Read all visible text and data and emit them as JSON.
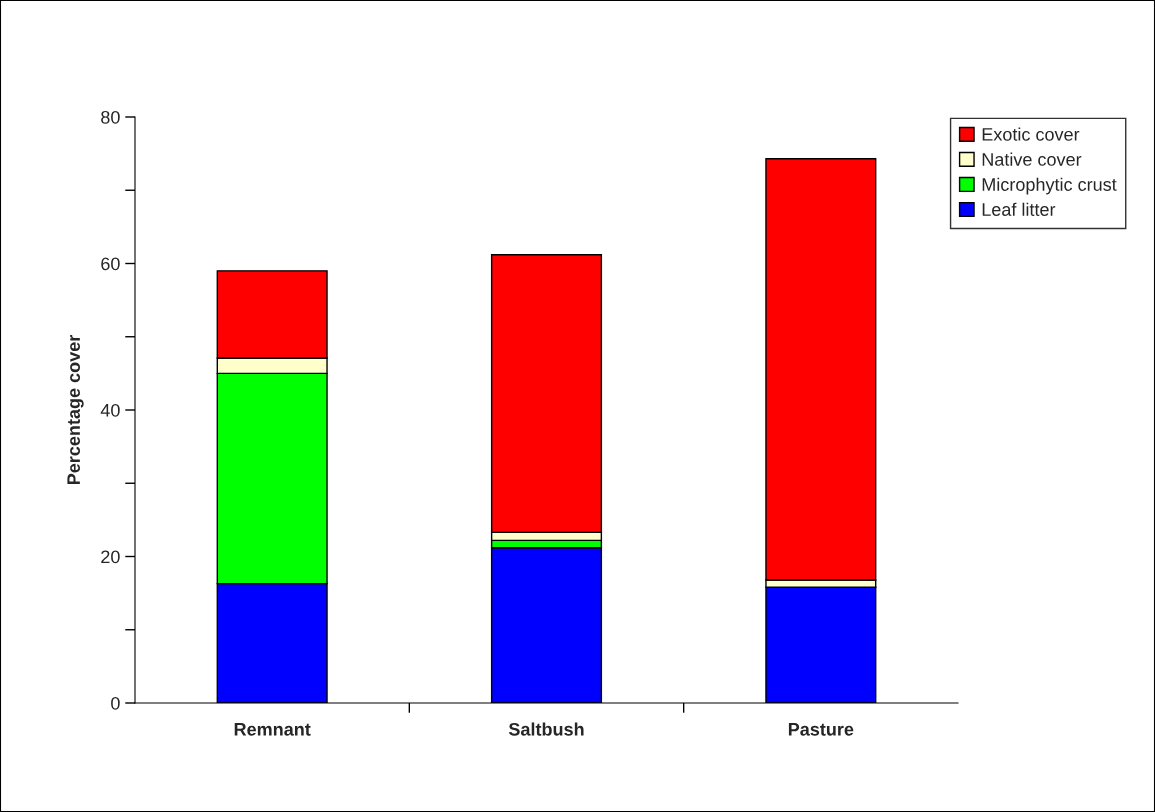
{
  "chart_data": {
    "type": "bar",
    "stacked": true,
    "ylabel": "Percentage cover",
    "categories": [
      "Remnant",
      "Saltbush",
      "Pasture"
    ],
    "series": [
      {
        "name": "Leaf litter",
        "color": "#0000ff",
        "values": [
          16.3,
          21.2,
          15.8
        ]
      },
      {
        "name": "Microphytic crust",
        "color": "#00ff00",
        "values": [
          28.7,
          1.0,
          0
        ]
      },
      {
        "name": "Native cover",
        "color": "#ffffcc",
        "values": [
          2.1,
          1.1,
          1.0
        ]
      },
      {
        "name": "Exotic cover",
        "color": "#ff0000",
        "values": [
          11.9,
          37.9,
          57.5
        ]
      }
    ],
    "ylim": [
      0,
      80
    ],
    "yticks": [
      0,
      {
        "value": 10,
        "label": null
      },
      20,
      {
        "value": 30,
        "label": null
      },
      40,
      {
        "value": 50,
        "label": null
      },
      60,
      {
        "value": 70,
        "label": null
      },
      80
    ],
    "grid": false,
    "legend": "top right"
  }
}
